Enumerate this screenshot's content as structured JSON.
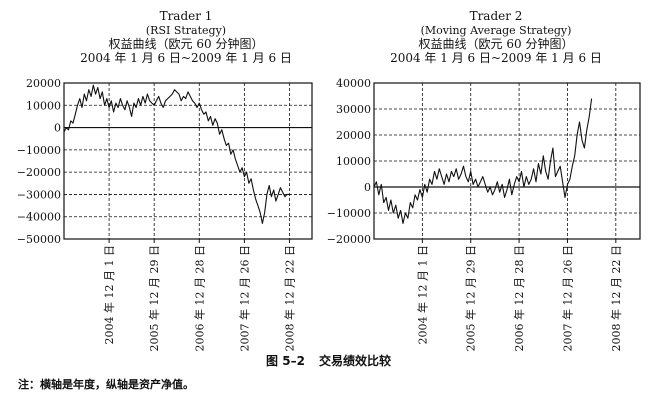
{
  "caption": {
    "number": "图 5–2",
    "title": "交易绩效比较"
  },
  "note": "注：横轴是年度，纵轴是资产净值。",
  "chart_data": [
    {
      "type": "line",
      "title_lines": [
        "Trader 1",
        "(RSI Strategy)",
        "权益曲线（欧元 60 分钟图）",
        "2004 年 1 月 6 日~2009 年 1 月 6 日"
      ],
      "yticks": [
        "20000",
        "10000",
        "0",
        "−10000",
        "−20000",
        "−30000",
        "−40000",
        "−50000"
      ],
      "ylim": [
        -50000,
        20000
      ],
      "xticks": [
        "2004 年 12 月 1 日",
        "2005 年 12 月 29 日",
        "2006 年 12 月 28 日",
        "2007 年 12 月 26 日",
        "2008 年 12 月 22 日"
      ],
      "xlim": [
        0,
        5.5
      ],
      "grid": true,
      "series": [
        {
          "x": [
            0,
            0.05,
            0.1,
            0.15,
            0.2,
            0.25,
            0.3,
            0.35,
            0.4,
            0.45,
            0.5,
            0.55,
            0.6,
            0.65,
            0.7,
            0.75,
            0.8,
            0.85,
            0.9,
            0.95,
            1.0,
            1.05,
            1.1,
            1.15,
            1.2,
            1.25,
            1.3,
            1.35,
            1.4,
            1.45,
            1.5,
            1.55,
            1.6,
            1.65,
            1.7,
            1.75,
            1.8,
            1.85,
            1.9,
            1.95,
            2.0,
            2.05,
            2.1,
            2.15,
            2.2,
            2.25,
            2.3,
            2.35,
            2.4,
            2.45,
            2.5,
            2.55,
            2.6,
            2.65,
            2.7,
            2.75,
            2.8,
            2.85,
            2.9,
            2.95,
            3.0,
            3.05,
            3.1,
            3.15,
            3.2,
            3.25,
            3.3,
            3.35,
            3.4,
            3.45,
            3.5,
            3.55,
            3.6,
            3.65,
            3.7,
            3.75,
            3.8,
            3.85,
            3.9,
            3.95,
            4.0,
            4.05,
            4.1,
            4.15,
            4.2,
            4.25,
            4.3,
            4.35,
            4.4,
            4.45,
            4.5,
            4.55,
            4.6,
            4.65,
            4.7,
            4.75,
            4.8,
            4.85,
            4.9,
            4.95,
            5.0
          ],
          "values": [
            -2000,
            0,
            -1000,
            3000,
            2000,
            6000,
            10000,
            13000,
            9000,
            15000,
            12000,
            17000,
            14000,
            19000,
            15000,
            18000,
            13000,
            16000,
            10000,
            13000,
            9000,
            12000,
            7000,
            11000,
            9000,
            13000,
            10000,
            8000,
            12000,
            9000,
            5000,
            11000,
            9000,
            13000,
            10000,
            14000,
            11000,
            15000,
            12000,
            11000,
            10000,
            12000,
            14000,
            11000,
            9000,
            12000,
            13000,
            14000,
            15000,
            17000,
            16000,
            15000,
            12000,
            14000,
            13000,
            16000,
            14000,
            12000,
            11000,
            9000,
            11000,
            8000,
            6000,
            7000,
            3000,
            5000,
            1000,
            4000,
            2000,
            -3000,
            -1000,
            -5000,
            -8000,
            -7000,
            -12000,
            -10000,
            -14000,
            -17000,
            -20000,
            -18000,
            -22000,
            -20000,
            -25000,
            -23000,
            -28000,
            -32000,
            -35000,
            -38000,
            -43000,
            -38000,
            -30000,
            -26000,
            -31000,
            -28000,
            -33000,
            -30000,
            -27000,
            -29000,
            -31000,
            -30000,
            -30000
          ]
        }
      ]
    },
    {
      "type": "line",
      "title_lines": [
        "Trader 2",
        "(Moving Average Strategy)",
        "权益曲线（欧元 60 分钟图）",
        "2004 年 1 月 6 日~2009 年 1 月 6 日"
      ],
      "yticks": [
        "40000",
        "30000",
        "20000",
        "10000",
        "0",
        "−10000",
        "−20000"
      ],
      "ylim": [
        -20000,
        40000
      ],
      "xticks": [
        "2004 年 12 月 1 日",
        "2005 年 12 月 29 日",
        "2006 年 12 月 28 日",
        "2007 年 12 月 26 日",
        "2008 年 12 月 22 日"
      ],
      "xlim": [
        0,
        5.5
      ],
      "grid": true,
      "series": [
        {
          "x": [
            0,
            0.05,
            0.1,
            0.15,
            0.2,
            0.25,
            0.3,
            0.35,
            0.4,
            0.45,
            0.5,
            0.55,
            0.6,
            0.65,
            0.7,
            0.75,
            0.8,
            0.85,
            0.9,
            0.95,
            1.0,
            1.05,
            1.1,
            1.15,
            1.2,
            1.25,
            1.3,
            1.35,
            1.4,
            1.45,
            1.5,
            1.55,
            1.6,
            1.65,
            1.7,
            1.75,
            1.8,
            1.85,
            1.9,
            1.95,
            2.0,
            2.05,
            2.1,
            2.15,
            2.2,
            2.25,
            2.3,
            2.35,
            2.4,
            2.45,
            2.5,
            2.55,
            2.6,
            2.65,
            2.7,
            2.75,
            2.8,
            2.85,
            2.9,
            2.95,
            3.0,
            3.05,
            3.1,
            3.15,
            3.2,
            3.25,
            3.3,
            3.35,
            3.4,
            3.45,
            3.5,
            3.55,
            3.6,
            3.65,
            3.7,
            3.75,
            3.8,
            3.85,
            3.9,
            3.95,
            4.0,
            4.05,
            4.1,
            4.15,
            4.2,
            4.25,
            4.3,
            4.35,
            4.4,
            4.45,
            4.5
          ],
          "values": [
            0,
            2000,
            -3000,
            1000,
            -6000,
            -4000,
            -9000,
            -5000,
            -10000,
            -7000,
            -12000,
            -9000,
            -14000,
            -10000,
            -12000,
            -6000,
            -8000,
            -3000,
            -5000,
            -1000,
            -4000,
            1000,
            -2000,
            3000,
            1000,
            6000,
            3000,
            7000,
            4000,
            1000,
            5000,
            2000,
            6000,
            4000,
            7000,
            3000,
            5000,
            8000,
            4000,
            2000,
            6000,
            1000,
            3000,
            0,
            2000,
            4000,
            1000,
            -2000,
            0,
            -3000,
            -1000,
            2000,
            -2000,
            1000,
            -4000,
            -1000,
            3000,
            -3000,
            1000,
            4000,
            2000,
            6000,
            0,
            4000,
            1000,
            3000,
            7000,
            2000,
            9000,
            5000,
            12000,
            6000,
            3000,
            10000,
            15000,
            4000,
            6000,
            8000,
            2000,
            -4000,
            1000,
            3000,
            8000,
            12000,
            20000,
            25000,
            18000,
            15000,
            22000,
            27000,
            34000
          ]
        }
      ]
    }
  ]
}
